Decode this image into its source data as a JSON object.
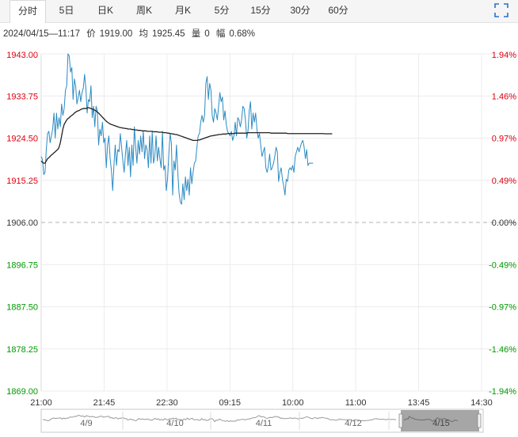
{
  "tabs": [
    {
      "label": "分时",
      "active": true
    },
    {
      "label": "5日"
    },
    {
      "label": "日K"
    },
    {
      "label": "周K"
    },
    {
      "label": "月K"
    },
    {
      "label": "5分"
    },
    {
      "label": "15分"
    },
    {
      "label": "30分"
    },
    {
      "label": "60分"
    }
  ],
  "info": {
    "datetime": "2024/04/15—11:17",
    "price_label": "价",
    "price": "1919.00",
    "avg_label": "均",
    "avg": "1925.45",
    "volume_label": "量",
    "volume": "0",
    "change_label": "幅",
    "change": "0.68%"
  },
  "icons": {
    "expand": "fullscreen-icon"
  },
  "colors": {
    "price_line": "#2b8bc3",
    "avg_line": "#222222",
    "up": "#e0000f",
    "down": "#009a00",
    "base": "#333333"
  },
  "chart_data": {
    "type": "line",
    "base_price": 1906.0,
    "ylim": [
      1869.0,
      1943.0
    ],
    "y_ticks_left": [
      "1943.00",
      "1933.75",
      "1924.50",
      "1915.25",
      "1906.00",
      "1896.75",
      "1887.50",
      "1878.25",
      "1869.00"
    ],
    "y_ticks_right": [
      "1.94%",
      "1.46%",
      "0.97%",
      "0.49%",
      "0.00%",
      "-0.49%",
      "-0.97%",
      "-1.46%",
      "-1.94%"
    ],
    "x_ticks": [
      "21:00",
      "21:45",
      "22:30",
      "09:15",
      "10:00",
      "11:00",
      "13:45",
      "14:30"
    ],
    "session_points": 345,
    "series": [
      {
        "values": [
          1920.5,
          1919.8,
          1916.5,
          1917.0,
          1922.0,
          1925.5,
          1926.0,
          1923.5,
          1925.0,
          1926.5,
          1930.0,
          1924.5,
          1930.0,
          1926.5,
          1929.0,
          1927.0,
          1932.0,
          1929.5,
          1931.0,
          1935.0,
          1936.0,
          1943.0,
          1942.5,
          1939.0,
          1940.0,
          1933.0,
          1937.5,
          1936.0,
          1932.0,
          1933.5,
          1935.0,
          1932.5,
          1934.5,
          1935.5,
          1938.5,
          1935.5,
          1930.0,
          1933.0,
          1932.5,
          1936.0,
          1929.0,
          1931.5,
          1927.0,
          1931.5,
          1930.5,
          1923.0,
          1926.5,
          1925.0,
          1928.0,
          1923.5,
          1924.5,
          1918.0,
          1923.0,
          1925.0,
          1920.0,
          1917.5,
          1913.0,
          1918.5,
          1923.0,
          1918.5,
          1922.0,
          1921.5,
          1925.5,
          1922.5,
          1919.5,
          1917.0,
          1921.0,
          1924.0,
          1918.5,
          1922.5,
          1916.0,
          1923.0,
          1918.5,
          1927.0,
          1922.5,
          1919.0,
          1924.0,
          1921.0,
          1925.0,
          1921.5,
          1926.0,
          1920.0,
          1923.0,
          1922.0,
          1918.0,
          1925.0,
          1919.0,
          1926.0,
          1919.0,
          1920.5,
          1925.0,
          1919.5,
          1922.5,
          1920.0,
          1918.0,
          1926.0,
          1917.5,
          1918.5,
          1913.0,
          1915.5,
          1921.0,
          1925.5,
          1923.5,
          1912.0,
          1919.5,
          1917.5,
          1923.0,
          1917.0,
          1912.5,
          1910.5,
          1910.0,
          1914.5,
          1911.0,
          1916.0,
          1913.0,
          1915.5,
          1912.0,
          1918.0,
          1914.5,
          1917.0,
          1919.0,
          1919.5,
          1922.5,
          1925.0,
          1925.5,
          1928.0,
          1929.5,
          1928.0,
          1929.5,
          1936.5,
          1938.0,
          1933.0,
          1936.5,
          1935.0,
          1929.5,
          1928.0,
          1931.0,
          1930.0,
          1928.5,
          1931.5,
          1934.5,
          1932.5,
          1933.5,
          1928.5,
          1930.5,
          1927.5,
          1926.0,
          1925.5,
          1925.0,
          1926.0,
          1924.0,
          1925.0,
          1928.0,
          1925.0,
          1929.0,
          1928.5,
          1927.0,
          1928.5,
          1931.5,
          1931.0,
          1928.5,
          1924.5,
          1926.0,
          1930.5,
          1932.5,
          1926.5,
          1930.0,
          1928.0,
          1930.0,
          1926.5,
          1924.5,
          1925.5,
          1923.0,
          1920.5,
          1921.5,
          1922.5,
          1918.0,
          1917.0,
          1918.5,
          1921.0,
          1917.5,
          1918.0,
          1919.0,
          1920.5,
          1922.5,
          1921.5,
          1915.0,
          1917.0,
          1918.0,
          1915.5,
          1914.0,
          1912.0,
          1915.5,
          1915.0,
          1917.5,
          1918.0,
          1917.5,
          1918.5,
          1917.0,
          1920.5,
          1921.5,
          1922.5,
          1921.5,
          1922.5,
          1923.5,
          1924.0,
          1922.5,
          1920.0,
          1922.0,
          1918.5,
          1919.0,
          1919.0,
          1919.0,
          1919.0
        ]
      },
      {
        "values": [
          1919.5,
          1919.2,
          1919.0,
          1919.0,
          1919.5,
          1920.0,
          1920.2,
          1920.5,
          1920.8,
          1921.0,
          1921.3,
          1921.5,
          1921.8,
          1922.0,
          1922.5,
          1923.5,
          1925.0,
          1926.5,
          1927.5,
          1928.0,
          1928.5,
          1928.8,
          1929.0,
          1929.3,
          1929.5,
          1929.7,
          1930.0,
          1930.2,
          1930.4,
          1930.5,
          1930.6,
          1930.8,
          1930.9,
          1931.0,
          1931.0,
          1931.0,
          1931.1,
          1931.2,
          1931.1,
          1931.0,
          1930.9,
          1930.8,
          1930.6,
          1930.5,
          1930.2,
          1930.0,
          1929.7,
          1929.4,
          1929.1,
          1928.8,
          1928.5,
          1928.2,
          1928.0,
          1927.8,
          1927.6,
          1927.5,
          1927.4,
          1927.3,
          1927.2,
          1927.1,
          1927.0,
          1926.9,
          1926.8,
          1926.8,
          1926.7,
          1926.7,
          1926.6,
          1926.6,
          1926.5,
          1926.5,
          1926.5,
          1926.4,
          1926.4,
          1926.3,
          1926.3,
          1926.3,
          1926.2,
          1926.2,
          1926.2,
          1926.1,
          1926.1,
          1926.1,
          1926.1,
          1926.0,
          1926.0,
          1926.0,
          1926.0,
          1926.0,
          1925.9,
          1925.9,
          1925.9,
          1925.9,
          1925.8,
          1925.8,
          1925.8,
          1925.8,
          1925.7,
          1925.7,
          1925.7,
          1925.6,
          1925.6,
          1925.5,
          1925.5,
          1925.4,
          1925.4,
          1925.3,
          1925.3,
          1925.2,
          1925.1,
          1925.0,
          1924.9,
          1924.8,
          1924.7,
          1924.6,
          1924.5,
          1924.4,
          1924.3,
          1924.2,
          1924.1,
          1924.0,
          1924.0,
          1924.0,
          1924.0,
          1924.1,
          1924.1,
          1924.2,
          1924.3,
          1924.4,
          1924.5,
          1924.6,
          1924.7,
          1924.8,
          1924.9,
          1925.0,
          1925.0,
          1925.1,
          1925.1,
          1925.2,
          1925.2,
          1925.3,
          1925.3,
          1925.3,
          1925.4,
          1925.4,
          1925.4,
          1925.4,
          1925.5,
          1925.5,
          1925.5,
          1925.5,
          1925.5,
          1925.5,
          1925.6,
          1925.6,
          1925.6,
          1925.6,
          1925.6,
          1925.6,
          1925.6,
          1925.6,
          1925.6,
          1925.6,
          1925.7,
          1925.7,
          1925.7,
          1925.7,
          1925.7,
          1925.7,
          1925.7,
          1925.7,
          1925.7,
          1925.7,
          1925.7,
          1925.7,
          1925.7,
          1925.7,
          1925.7,
          1925.7,
          1925.7,
          1925.7,
          1925.6,
          1925.6,
          1925.6,
          1925.6,
          1925.6,
          1925.6,
          1925.6,
          1925.6,
          1925.6,
          1925.6,
          1925.6,
          1925.6,
          1925.6,
          1925.5,
          1925.5,
          1925.5,
          1925.5,
          1925.5,
          1925.5,
          1925.5,
          1925.5,
          1925.5,
          1925.5,
          1925.5,
          1925.5,
          1925.5,
          1925.5,
          1925.5,
          1925.5,
          1925.5,
          1925.5,
          1925.5,
          1925.5,
          1925.5,
          1925.5,
          1925.5,
          1925.5,
          1925.5,
          1925.5,
          1925.5,
          1925.5,
          1925.5,
          1925.45,
          1925.45,
          1925.45,
          1925.45,
          1925.45,
          1925.45,
          1925.45
        ]
      }
    ],
    "navigator": {
      "day_labels": [
        "4/9",
        "4/10",
        "4/11",
        "4/12",
        "4/15"
      ],
      "selected_day": "4/15"
    }
  }
}
